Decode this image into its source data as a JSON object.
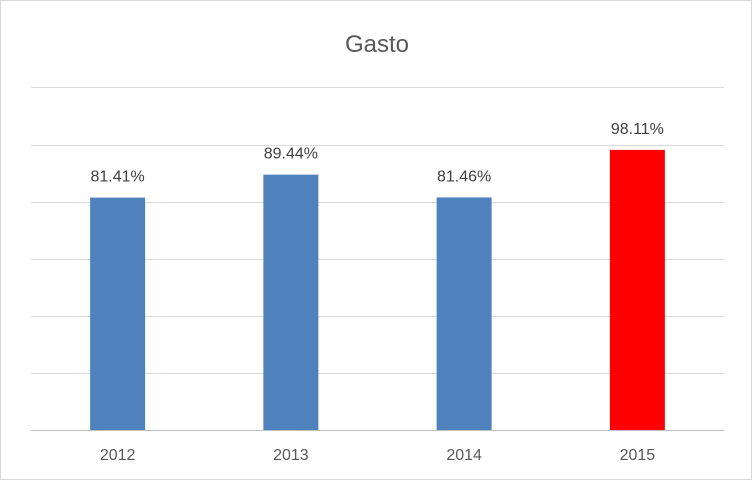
{
  "chart_data": {
    "type": "bar",
    "title": "Gasto",
    "categories": [
      "2012",
      "2013",
      "2014",
      "2015"
    ],
    "values": [
      81.41,
      89.44,
      81.46,
      98.11
    ],
    "data_labels": [
      "81.41%",
      "89.44%",
      "81.46%",
      "98.11%"
    ],
    "bar_colors": [
      "#4f81bd",
      "#4f81bd",
      "#4f81bd",
      "#ff0000"
    ],
    "ylim": [
      0,
      120
    ],
    "grid": true,
    "gridline_step": 20,
    "legend": "none",
    "xlabel": "",
    "ylabel": ""
  }
}
